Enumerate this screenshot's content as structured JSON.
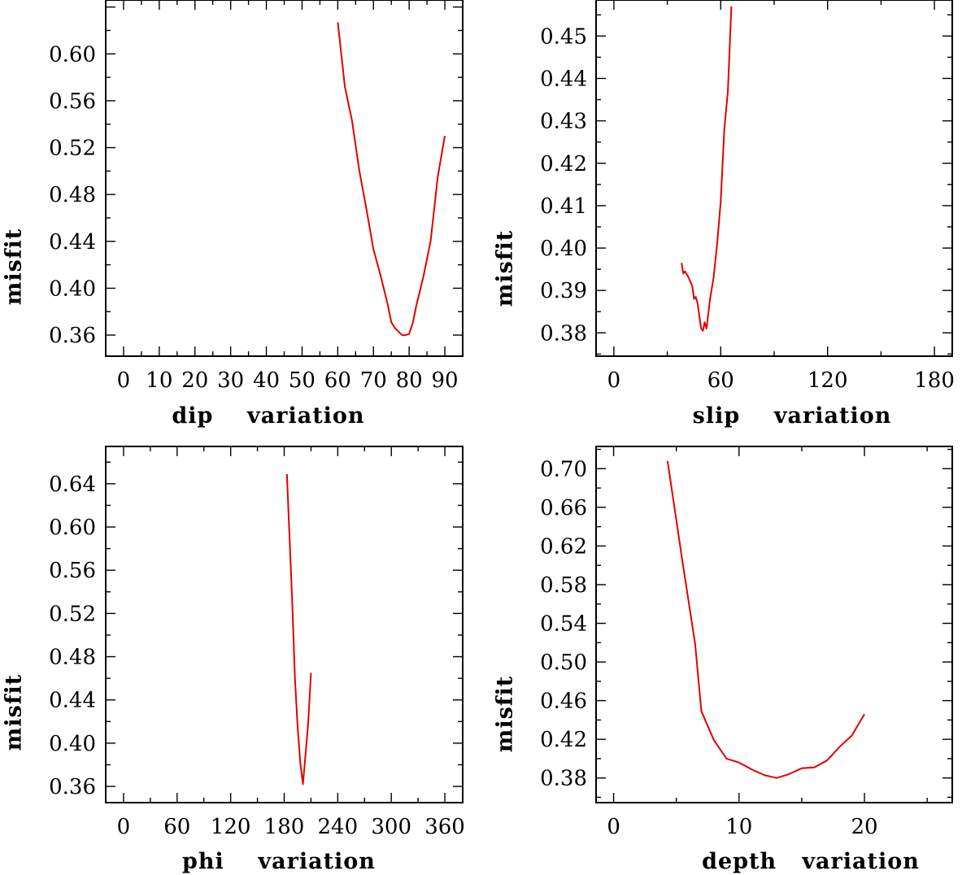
{
  "chart_data": [
    {
      "type": "line",
      "id": "dip",
      "xlabel": "dip    variation",
      "ylabel": "misfit",
      "xlim": [
        -5,
        95
      ],
      "ylim": [
        0.342,
        0.646
      ],
      "xticks": [
        0,
        10,
        20,
        30,
        40,
        50,
        60,
        70,
        80,
        90
      ],
      "xtick_labels": [
        "0",
        "10",
        "20",
        "30",
        "40",
        "50",
        "60",
        "70",
        "80",
        "90"
      ],
      "yticks": [
        0.36,
        0.4,
        0.44,
        0.48,
        0.52,
        0.56,
        0.6
      ],
      "ytick_labels": [
        "0.36",
        "0.40",
        "0.44",
        "0.48",
        "0.52",
        "0.56",
        "0.60"
      ],
      "series": [
        {
          "name": "dip misfit",
          "x": [
            60,
            62,
            64,
            66,
            68,
            70,
            72,
            74,
            75,
            76,
            77,
            78,
            79,
            80,
            81,
            82,
            84,
            86,
            88,
            90
          ],
          "y": [
            0.627,
            0.572,
            0.543,
            0.501,
            0.468,
            0.433,
            0.411,
            0.386,
            0.371,
            0.366,
            0.363,
            0.36,
            0.36,
            0.361,
            0.37,
            0.385,
            0.41,
            0.44,
            0.495,
            0.53
          ]
        }
      ]
    },
    {
      "type": "line",
      "id": "slip",
      "xlabel": "slip    variation",
      "ylabel": "misfit",
      "xlim": [
        -10,
        190
      ],
      "ylim": [
        0.3745,
        0.4585
      ],
      "xticks": [
        0,
        60,
        120,
        180
      ],
      "xtick_labels": [
        "0",
        "60",
        "120",
        "180"
      ],
      "yticks": [
        0.38,
        0.39,
        0.4,
        0.41,
        0.42,
        0.43,
        0.44,
        0.45
      ],
      "ytick_labels": [
        "0.38",
        "0.39",
        "0.40",
        "0.41",
        "0.42",
        "0.43",
        "0.44",
        "0.45"
      ],
      "series": [
        {
          "name": "slip misfit",
          "x": [
            38,
            39,
            40,
            42,
            43,
            44,
            45,
            46,
            47,
            48,
            49,
            50,
            51,
            52,
            54,
            56,
            58,
            60,
            62,
            64,
            66
          ],
          "y": [
            0.3965,
            0.394,
            0.3945,
            0.393,
            0.392,
            0.391,
            0.388,
            0.3885,
            0.387,
            0.384,
            0.381,
            0.3805,
            0.3825,
            0.381,
            0.388,
            0.393,
            0.401,
            0.411,
            0.428,
            0.437,
            0.457
          ]
        }
      ]
    },
    {
      "type": "line",
      "id": "phi",
      "xlabel": "phi    variation",
      "ylabel": "misfit",
      "xlim": [
        -20,
        380
      ],
      "ylim": [
        0.345,
        0.6745
      ],
      "xticks": [
        0,
        60,
        120,
        180,
        240,
        300,
        360
      ],
      "xtick_labels": [
        "0",
        "60",
        "120",
        "180",
        "240",
        "300",
        "360"
      ],
      "yticks": [
        0.36,
        0.4,
        0.44,
        0.48,
        0.52,
        0.56,
        0.6,
        0.64
      ],
      "ytick_labels": [
        "0.36",
        "0.40",
        "0.44",
        "0.48",
        "0.52",
        "0.56",
        "0.60",
        "0.64"
      ],
      "series": [
        {
          "name": "phi misfit",
          "x": [
            183,
            186,
            189,
            192,
            195,
            198,
            201,
            204,
            207,
            210
          ],
          "y": [
            0.649,
            0.59,
            0.53,
            0.46,
            0.415,
            0.382,
            0.362,
            0.39,
            0.42,
            0.465
          ]
        }
      ]
    },
    {
      "type": "line",
      "id": "depth",
      "xlabel": "depth   variation",
      "ylabel": "misfit",
      "xlim": [
        -1.4,
        27
      ],
      "ylim": [
        0.3545,
        0.723
      ],
      "xticks": [
        0,
        10,
        20
      ],
      "xtick_labels": [
        "0",
        "10",
        "20"
      ],
      "yticks": [
        0.38,
        0.42,
        0.46,
        0.5,
        0.54,
        0.58,
        0.62,
        0.66,
        0.7
      ],
      "ytick_labels": [
        "0.38",
        "0.42",
        "0.46",
        "0.50",
        "0.54",
        "0.58",
        "0.62",
        "0.66",
        "0.70"
      ],
      "series": [
        {
          "name": "depth misfit",
          "x": [
            4.3,
            5.5,
            6.5,
            7,
            8,
            9,
            10,
            11,
            12,
            13,
            14,
            15,
            16,
            17,
            18,
            19,
            20
          ],
          "y": [
            0.708,
            0.603,
            0.519,
            0.449,
            0.419,
            0.4,
            0.396,
            0.389,
            0.383,
            0.38,
            0.384,
            0.39,
            0.391,
            0.398,
            0.412,
            0.424,
            0.446
          ]
        }
      ]
    }
  ]
}
